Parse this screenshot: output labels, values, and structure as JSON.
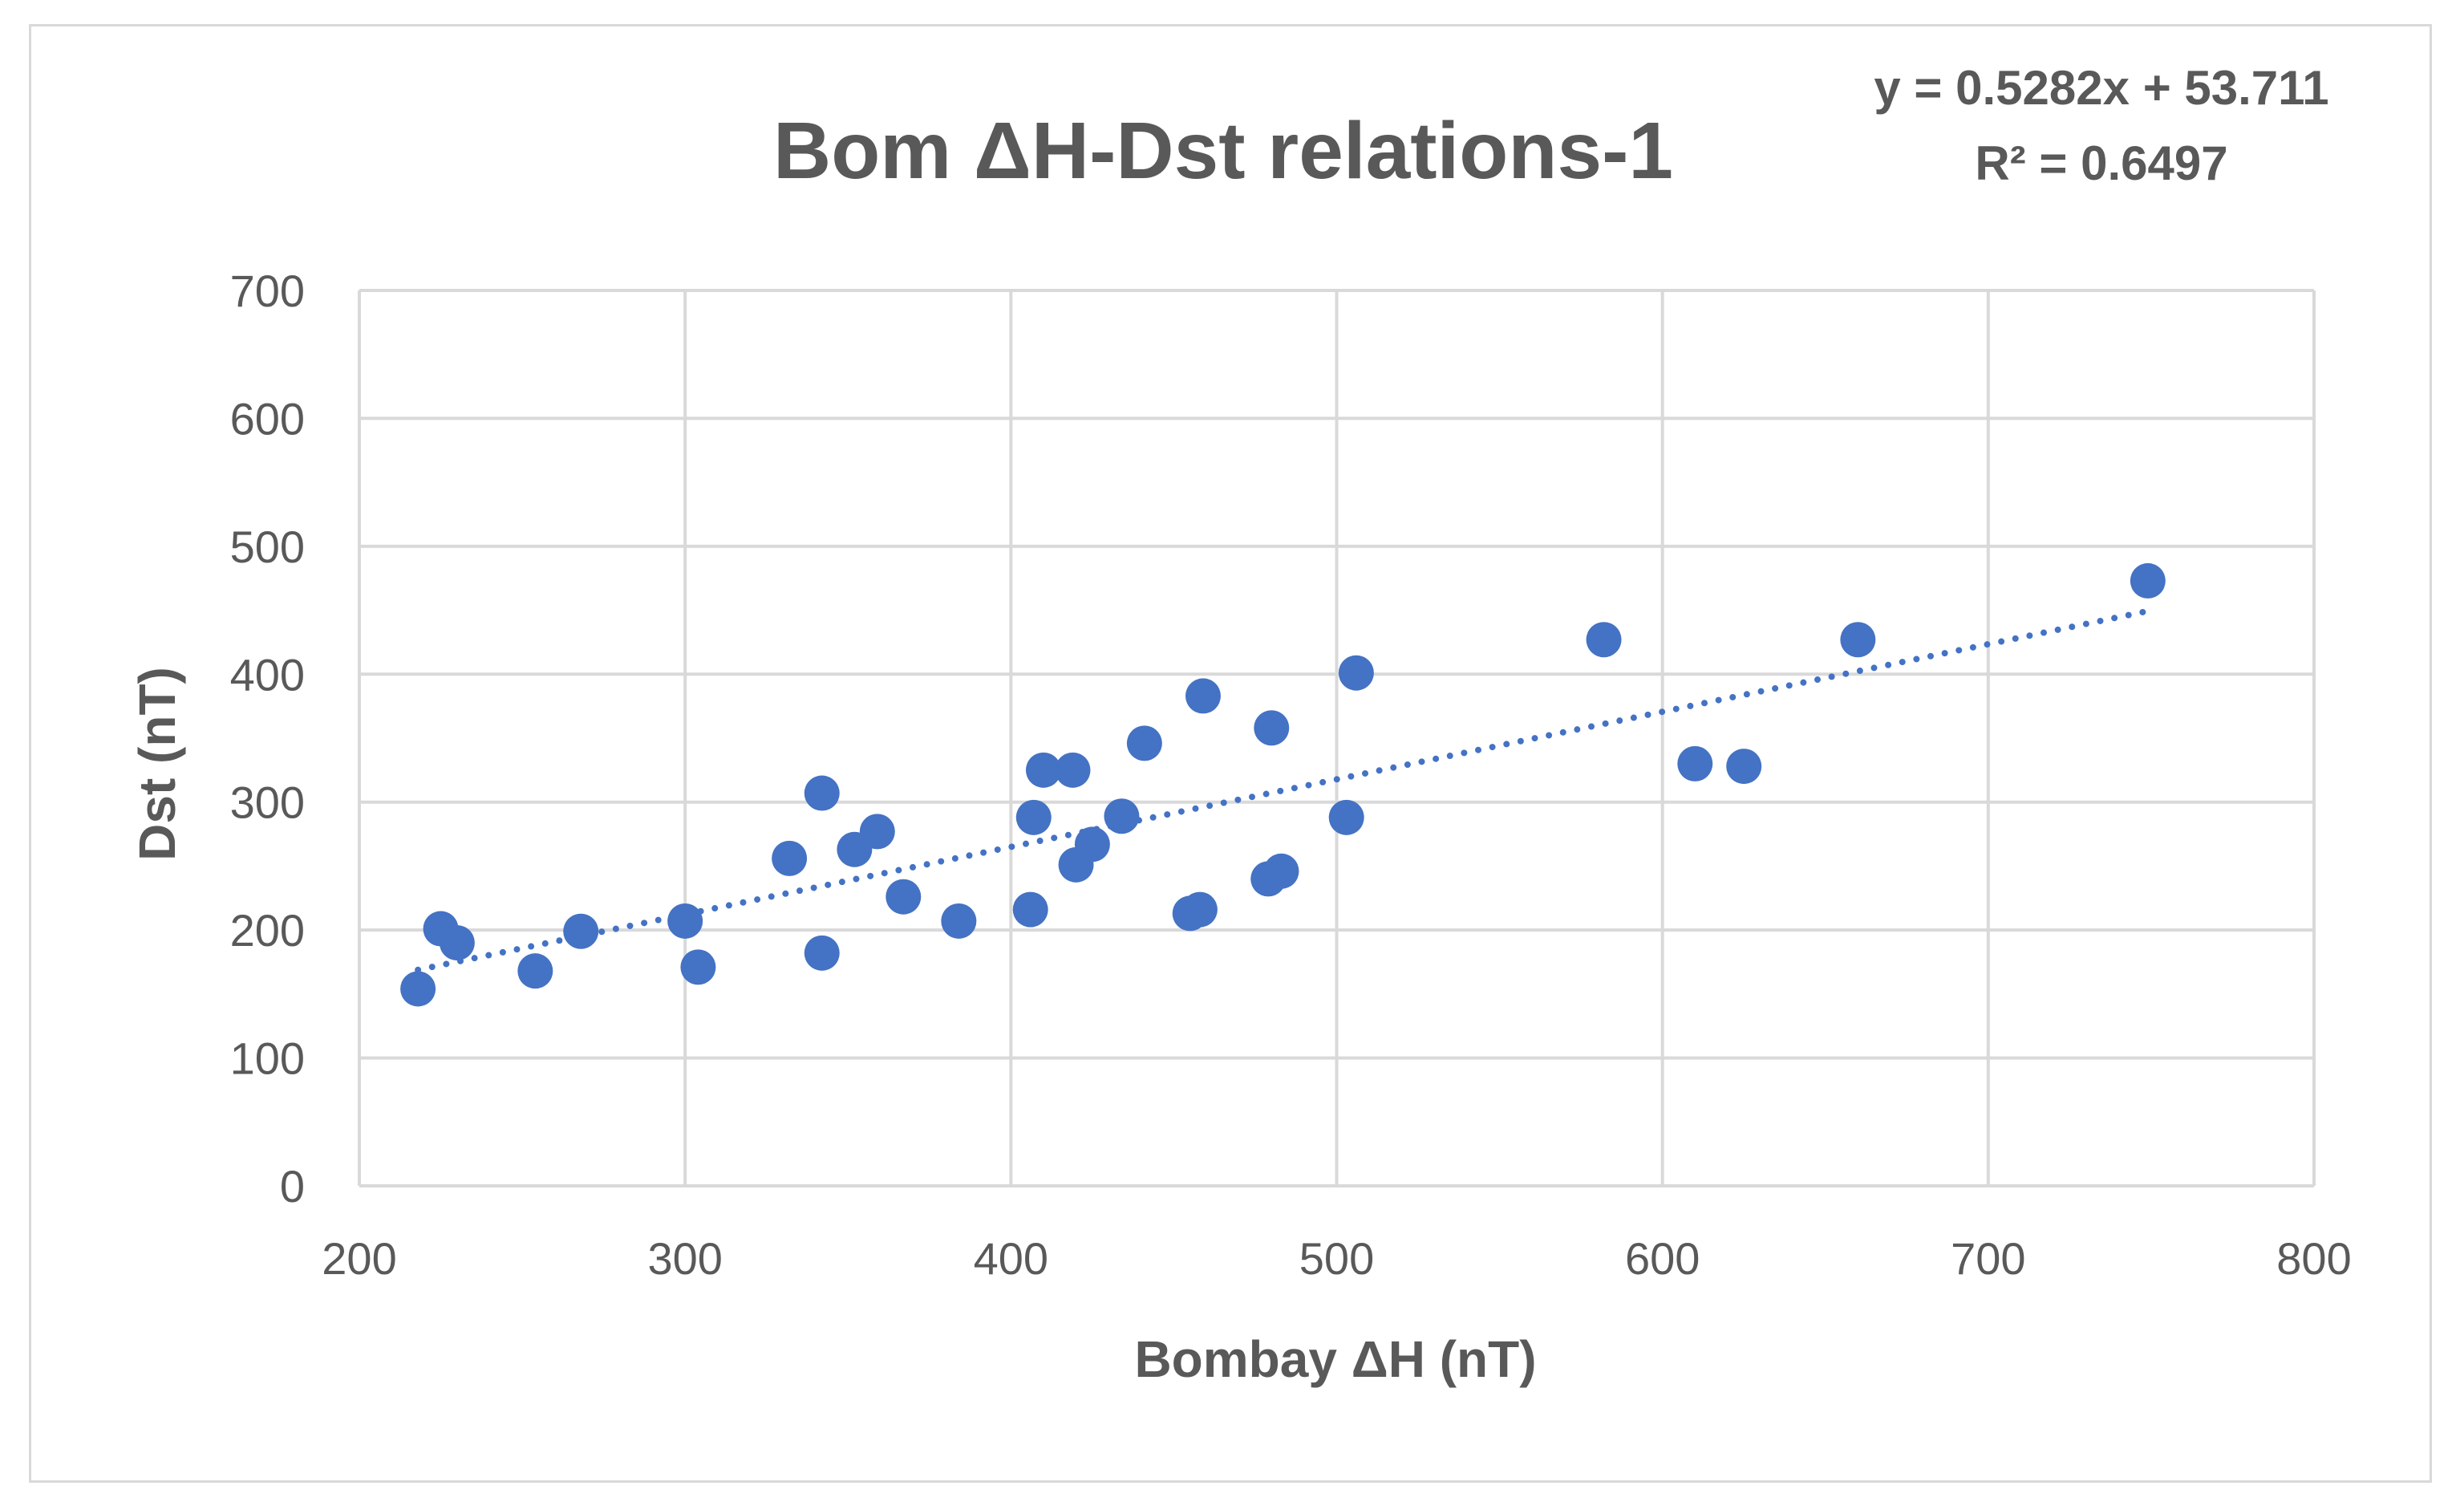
{
  "chart_data": {
    "type": "scatter",
    "title": "Bom ΔH-Dst relations-1",
    "xlabel": "Bombay ΔH (nT)",
    "ylabel": "Dst (nT)",
    "xlim": [
      200,
      800
    ],
    "ylim": [
      0,
      700
    ],
    "xticks": [
      200,
      300,
      400,
      500,
      600,
      700,
      800
    ],
    "yticks": [
      0,
      100,
      200,
      300,
      400,
      500,
      600,
      700
    ],
    "grid": true,
    "legend": "none",
    "color": "#4472c4",
    "trendline": {
      "type": "linear",
      "slope": 0.5282,
      "intercept": 53.711,
      "x_range": [
        218,
        749
      ],
      "equation_label": "y = 0.5282x + 53.711",
      "r2_label": "R² = 0.6497"
    },
    "points": [
      {
        "x": 218,
        "y": 154
      },
      {
        "x": 225,
        "y": 201
      },
      {
        "x": 230,
        "y": 190
      },
      {
        "x": 254,
        "y": 168
      },
      {
        "x": 268,
        "y": 199
      },
      {
        "x": 300,
        "y": 207
      },
      {
        "x": 304,
        "y": 171
      },
      {
        "x": 332,
        "y": 256
      },
      {
        "x": 342,
        "y": 307
      },
      {
        "x": 342,
        "y": 182
      },
      {
        "x": 352,
        "y": 263
      },
      {
        "x": 359,
        "y": 277
      },
      {
        "x": 367,
        "y": 226
      },
      {
        "x": 384,
        "y": 207
      },
      {
        "x": 406,
        "y": 216
      },
      {
        "x": 407,
        "y": 288
      },
      {
        "x": 410,
        "y": 325
      },
      {
        "x": 419,
        "y": 325
      },
      {
        "x": 420,
        "y": 251
      },
      {
        "x": 425,
        "y": 267
      },
      {
        "x": 434,
        "y": 289
      },
      {
        "x": 441,
        "y": 346
      },
      {
        "x": 455,
        "y": 213
      },
      {
        "x": 458,
        "y": 216
      },
      {
        "x": 459,
        "y": 383
      },
      {
        "x": 479,
        "y": 240
      },
      {
        "x": 480,
        "y": 358
      },
      {
        "x": 483,
        "y": 246
      },
      {
        "x": 503,
        "y": 288
      },
      {
        "x": 506,
        "y": 401
      },
      {
        "x": 582,
        "y": 427
      },
      {
        "x": 610,
        "y": 330
      },
      {
        "x": 625,
        "y": 328
      },
      {
        "x": 660,
        "y": 427
      },
      {
        "x": 749,
        "y": 473
      }
    ]
  }
}
